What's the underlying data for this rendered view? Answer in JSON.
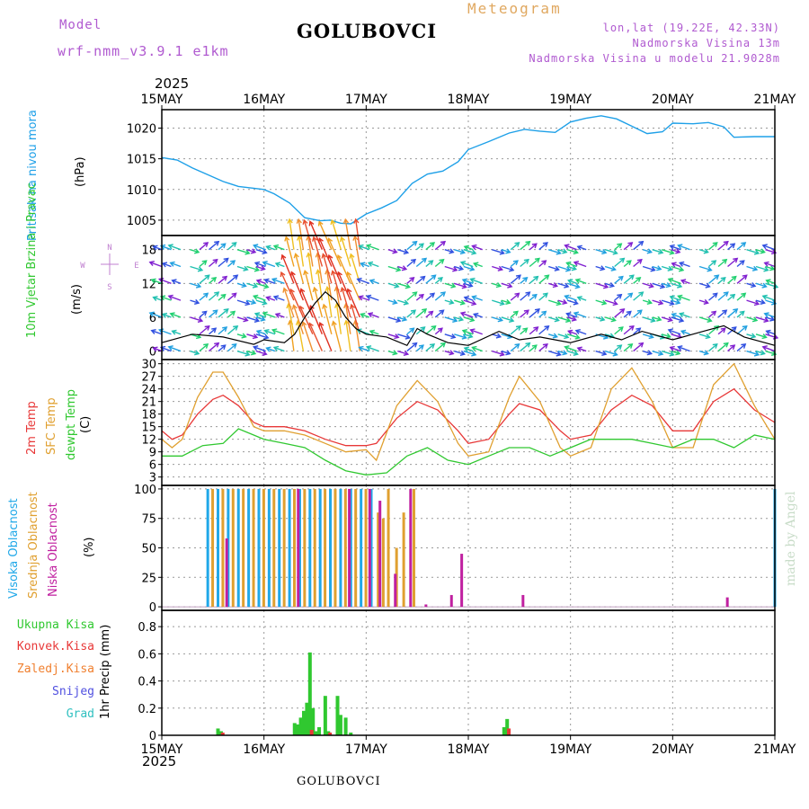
{
  "header": {
    "model_label": "Model",
    "model_name": "wrf-nmm_v3.9.1 e1km",
    "station": "GOLUBOVCI",
    "meteogram_label": "Meteogram",
    "lonlat": "lon,lat (19.22E, 42.33N)",
    "elevation": "Nadmorska Visina 13m",
    "model_elevation": "Nadmorska Visina u modelu 21.9028m",
    "year": "2025",
    "footer_station": "GOLUBOVCI",
    "credit": "made by Angel"
  },
  "time_axis": {
    "labels": [
      "15MAY",
      "16MAY",
      "17MAY",
      "18MAY",
      "19MAY",
      "20MAY",
      "21MAY"
    ]
  },
  "colors": {
    "pressure": "#1ea0e8",
    "temp2m": "#e83838",
    "sfc_temp": "#e0a030",
    "dewpoint": "#30c830",
    "high_cloud": "#20a8e8",
    "mid_cloud": "#e0a030",
    "low_cloud": "#c020a0",
    "total_precip": "#30c830",
    "conv_precip": "#e83838",
    "frozen_precip": "#f08030",
    "snow": "#5050e0",
    "hail": "#30c0c0"
  },
  "chart_data": [
    {
      "type": "line",
      "panel": "pressure",
      "ylabel_rot": "Pritisak na nivou mora",
      "unit": "(hPa)",
      "yticks": [
        1005,
        1010,
        1015,
        1020
      ],
      "ylim": [
        1002.5,
        1023
      ],
      "x_days": [
        0,
        0.15,
        0.3,
        0.45,
        0.6,
        0.75,
        0.9,
        1.0,
        1.1,
        1.25,
        1.4,
        1.55,
        1.65,
        1.75,
        1.85,
        2.0,
        2.15,
        2.3,
        2.45,
        2.6,
        2.75,
        2.9,
        3.0,
        3.2,
        3.4,
        3.55,
        3.7,
        3.85,
        4.0,
        4.15,
        4.3,
        4.45,
        4.6,
        4.75,
        4.9,
        5.0,
        5.2,
        5.35,
        5.5,
        5.6,
        5.8,
        6.0
      ],
      "values": [
        1015.2,
        1014.8,
        1013.5,
        1012.4,
        1011.3,
        1010.5,
        1010.2,
        1010.0,
        1009.3,
        1007.8,
        1005.4,
        1004.9,
        1005.0,
        1004.5,
        1004.4,
        1006.0,
        1007.0,
        1008.2,
        1011.0,
        1012.5,
        1013.0,
        1014.5,
        1016.5,
        1017.8,
        1019.2,
        1019.8,
        1019.5,
        1019.3,
        1021.0,
        1021.6,
        1022.0,
        1021.5,
        1020.3,
        1019.1,
        1019.4,
        1020.8,
        1020.7,
        1020.9,
        1020.2,
        1018.5,
        1018.6,
        1018.6
      ]
    },
    {
      "type": "line",
      "panel": "wind",
      "ylabel_rot": "10m Vjetar Brzina i Pravac",
      "unit": "(m/s)",
      "compass": [
        "N",
        "W",
        "E",
        "S"
      ],
      "yticks": [
        0,
        6,
        12,
        18
      ],
      "ylim": [
        -1.5,
        20.5
      ],
      "series": [
        {
          "name": "speed",
          "x_days": [
            0,
            0.3,
            0.6,
            0.9,
            1.0,
            1.2,
            1.3,
            1.4,
            1.5,
            1.6,
            1.7,
            1.8,
            1.9,
            2.0,
            2.2,
            2.4,
            2.5,
            2.6,
            2.8,
            3.0,
            3.3,
            3.5,
            3.7,
            4.0,
            4.3,
            4.5,
            4.7,
            5.0,
            5.3,
            5.5,
            5.7,
            6.0
          ],
          "values": [
            1.5,
            3.0,
            2.5,
            1.2,
            2.0,
            1.5,
            3.0,
            6.0,
            8.5,
            10.5,
            9.0,
            6.0,
            4.0,
            3.0,
            2.5,
            1.0,
            4.0,
            3.0,
            1.5,
            1.0,
            3.5,
            2.0,
            2.5,
            1.5,
            3.0,
            2.0,
            3.5,
            2.0,
            3.5,
            4.5,
            2.5,
            1.0
          ]
        }
      ]
    },
    {
      "type": "line",
      "panel": "temperature",
      "ylabel_rot_a": "2m Temp",
      "ylabel_rot_b": "SFC Temp",
      "ylabel_rot_c": "dewpt Temp",
      "unit": "(C)",
      "yticks": [
        3,
        6,
        9,
        12,
        15,
        18,
        21,
        24,
        27,
        30
      ],
      "ylim": [
        1,
        31
      ],
      "series": [
        {
          "name": "2m Temp",
          "x_days": [
            0,
            0.1,
            0.2,
            0.35,
            0.5,
            0.6,
            0.75,
            0.9,
            1.0,
            1.2,
            1.4,
            1.6,
            1.8,
            2.0,
            2.1,
            2.3,
            2.5,
            2.7,
            2.9,
            3.0,
            3.2,
            3.4,
            3.5,
            3.7,
            3.9,
            4.0,
            4.2,
            4.4,
            4.6,
            4.8,
            5.0,
            5.2,
            5.4,
            5.6,
            5.8,
            6.0
          ],
          "values": [
            14,
            12,
            13,
            18,
            21.5,
            22.5,
            20,
            16,
            15,
            15,
            14,
            12,
            10.5,
            10.5,
            11,
            17,
            21,
            19,
            14,
            11,
            12,
            18,
            20.5,
            19,
            14,
            12,
            13,
            19,
            22.5,
            20,
            14,
            14,
            21,
            24,
            19,
            16
          ]
        },
        {
          "name": "SFC Temp",
          "x_days": [
            0,
            0.1,
            0.2,
            0.35,
            0.5,
            0.6,
            0.75,
            0.9,
            1.0,
            1.2,
            1.4,
            1.6,
            1.8,
            2.0,
            2.1,
            2.3,
            2.5,
            2.7,
            2.9,
            3.0,
            3.2,
            3.4,
            3.5,
            3.7,
            3.9,
            4.0,
            4.2,
            4.4,
            4.6,
            4.8,
            5.0,
            5.2,
            5.4,
            5.6,
            5.8,
            6.0
          ],
          "values": [
            12,
            10,
            12,
            22,
            28,
            28,
            22,
            15,
            14,
            14,
            13,
            11,
            9,
            9.5,
            7,
            20,
            26,
            21,
            11,
            8,
            9,
            22,
            27,
            21,
            10,
            8,
            10,
            24,
            29,
            21,
            10,
            10,
            25,
            30,
            20,
            12
          ]
        },
        {
          "name": "dewpt Temp",
          "x_days": [
            0,
            0.2,
            0.4,
            0.6,
            0.75,
            0.9,
            1.0,
            1.2,
            1.4,
            1.6,
            1.8,
            2.0,
            2.2,
            2.4,
            2.6,
            2.8,
            3.0,
            3.2,
            3.4,
            3.6,
            3.8,
            4.0,
            4.2,
            4.4,
            4.6,
            4.8,
            5.0,
            5.2,
            5.4,
            5.6,
            5.8,
            6.0
          ],
          "values": [
            8,
            8,
            10.5,
            11,
            14.5,
            13,
            12,
            11,
            10,
            7,
            4.5,
            3.5,
            4,
            8,
            10,
            7,
            6,
            8,
            10,
            10,
            8,
            10,
            12,
            12,
            12,
            11,
            10,
            12,
            12,
            10,
            13,
            12
          ]
        }
      ]
    },
    {
      "type": "bar",
      "panel": "clouds",
      "ylabel_rot_a": "Visoka Oblacnost",
      "ylabel_rot_b": "Srednja Oblacnost",
      "ylabel_rot_c": "Niska Oblacnost",
      "unit": "(%)",
      "yticks": [
        0,
        25,
        50,
        75,
        100
      ],
      "ylim": [
        -3,
        103
      ],
      "series": [
        {
          "name": "Visoka Oblacnost",
          "x_days": [
            0.45,
            0.55,
            0.65,
            0.75,
            0.85,
            0.95,
            1.05,
            1.15,
            1.25,
            1.35,
            1.45,
            1.55,
            1.65,
            1.75,
            1.85,
            1.95,
            2.05,
            6.0
          ],
          "values": [
            100,
            100,
            100,
            100,
            100,
            100,
            100,
            100,
            100,
            100,
            100,
            100,
            100,
            100,
            100,
            100,
            100,
            100
          ]
        },
        {
          "name": "Srednja Oblacnost",
          "x_days": [
            0.48,
            0.58,
            0.68,
            0.78,
            0.88,
            0.98,
            1.08,
            1.18,
            1.28,
            1.38,
            1.48,
            1.58,
            1.68,
            1.78,
            1.88,
            1.98,
            2.1,
            2.15,
            2.2,
            2.28,
            2.35,
            2.45
          ],
          "values": [
            100,
            100,
            100,
            100,
            100,
            100,
            100,
            100,
            100,
            100,
            100,
            100,
            100,
            100,
            100,
            100,
            80,
            75,
            100,
            50,
            80,
            100
          ]
        },
        {
          "name": "Niska Oblacnost",
          "x_days": [
            0.6,
            1.3,
            1.8,
            2.0,
            2.1,
            2.25,
            2.4,
            2.55,
            2.8,
            2.9,
            3.5,
            5.5
          ],
          "values": [
            58,
            100,
            100,
            100,
            90,
            28,
            100,
            2,
            10,
            45,
            10,
            8
          ]
        }
      ]
    },
    {
      "type": "bar",
      "panel": "precipitation",
      "legend": [
        "Ukupna Kisa",
        "Konvek.Kisa",
        "Zaledj.Kisa",
        "Snijeg",
        "Grad"
      ],
      "ylabel_rot": "1hr Precip (mm)",
      "yticks": [
        0,
        0.2,
        0.4,
        0.6,
        0.8
      ],
      "ylim": [
        0,
        0.92
      ],
      "series": [
        {
          "name": "Ukupna Kisa",
          "x_days": [
            0.55,
            0.58,
            1.3,
            1.33,
            1.36,
            1.39,
            1.42,
            1.45,
            1.48,
            1.51,
            1.54,
            1.6,
            1.63,
            1.72,
            1.75,
            1.8,
            1.85,
            3.35,
            3.38
          ],
          "values": [
            0.05,
            0.03,
            0.09,
            0.08,
            0.13,
            0.18,
            0.24,
            0.61,
            0.2,
            0.03,
            0.06,
            0.29,
            0.03,
            0.29,
            0.15,
            0.13,
            0.02,
            0.06,
            0.12
          ]
        },
        {
          "name": "Konvek.Kisa",
          "x_days": [
            0.57,
            1.44,
            1.62,
            3.37
          ],
          "values": [
            0.02,
            0.04,
            0.02,
            0.05
          ]
        }
      ]
    }
  ]
}
